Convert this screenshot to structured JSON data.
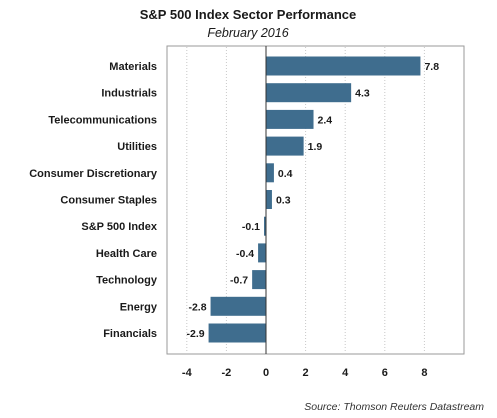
{
  "chart_data": {
    "type": "bar",
    "orientation": "horizontal",
    "title": "S&P 500 Index Sector Performance",
    "subtitle": "February 2016",
    "source": "Source: Thomson Reuters Datastream",
    "categories": [
      "Materials",
      "Industrials",
      "Telecommunications",
      "Utilities",
      "Consumer Discretionary",
      "Consumer Staples",
      "S&P 500 Index",
      "Health Care",
      "Technology",
      "Energy",
      "Financials"
    ],
    "values": [
      7.8,
      4.3,
      2.4,
      1.9,
      0.4,
      0.3,
      -0.1,
      -0.4,
      -0.7,
      -2.8,
      -2.9
    ],
    "value_labels": [
      "7.8",
      "4.3",
      "2.4",
      "1.9",
      "0.4",
      "0.3",
      "-0.1",
      "-0.4",
      "-0.7",
      "-2.8",
      "-2.9"
    ],
    "xlim": [
      -5,
      10
    ],
    "xticks": [
      -4,
      -2,
      0,
      2,
      4,
      6,
      8
    ],
    "xtick_labels": [
      "-4",
      "-2",
      "0",
      "2",
      "4",
      "6",
      "8"
    ],
    "xlabel": "",
    "ylabel": "",
    "grid": "vertical dotted",
    "legend": "none",
    "bar_color": "#3f6d8e"
  }
}
